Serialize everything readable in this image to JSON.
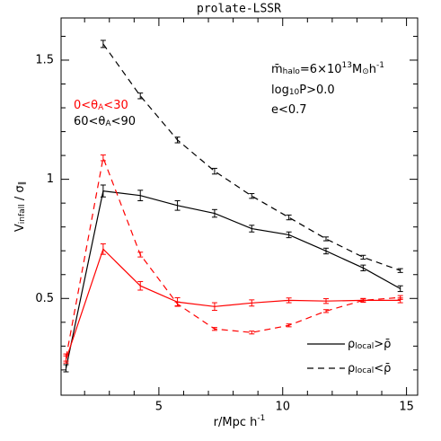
{
  "chart_data": {
    "type": "line",
    "title": "prolate-LSSR",
    "xlabel": [
      {
        "t": "r/Mpc h"
      },
      {
        "sup": "-1"
      }
    ],
    "ylabel": [
      {
        "t": "V"
      },
      {
        "sub": "infall"
      },
      {
        "t": " / σ"
      },
      {
        "sub": "∥"
      }
    ],
    "xlim": [
      1.05,
      15.45
    ],
    "ylim": [
      0.094,
      1.677
    ],
    "xticks": [
      5,
      10,
      15
    ],
    "yticks": [
      0.5,
      1,
      1.5
    ],
    "xminorticks": [
      2,
      3,
      4,
      6,
      7,
      8,
      9,
      11,
      12,
      13,
      14
    ],
    "yminorticks": [
      0.2,
      0.3,
      0.4,
      0.6,
      0.7,
      0.8,
      0.9,
      1.1,
      1.2,
      1.3,
      1.4,
      1.6
    ],
    "series": [
      {
        "color": "#000000",
        "dash": "dashed",
        "x": [
          2.75,
          4.25,
          5.75,
          7.25,
          8.75,
          10.25,
          11.75,
          13.25,
          14.75
        ],
        "values": [
          1.568,
          1.35,
          1.165,
          1.034,
          0.93,
          0.84,
          0.75,
          0.673,
          0.617
        ],
        "errors": [
          0.015,
          0.012,
          0.012,
          0.012,
          0.01,
          0.01,
          0.008,
          0.008,
          0.008
        ]
      },
      {
        "color": "#000000",
        "dash": "solid",
        "x": [
          1.25,
          2.75,
          4.25,
          5.75,
          7.25,
          8.75,
          10.25,
          11.75,
          13.25,
          14.75
        ],
        "values": [
          0.207,
          0.951,
          0.932,
          0.89,
          0.857,
          0.793,
          0.767,
          0.699,
          0.628,
          0.541
        ],
        "errors": [
          0.015,
          0.025,
          0.022,
          0.02,
          0.016,
          0.014,
          0.012,
          0.012,
          0.012,
          0.012
        ]
      },
      {
        "color": "#ff0000",
        "dash": "solid",
        "x": [
          1.25,
          2.75,
          4.25,
          5.75,
          7.25,
          8.75,
          10.25,
          11.75,
          13.25,
          14.75
        ],
        "values": [
          0.244,
          0.707,
          0.553,
          0.485,
          0.466,
          0.481,
          0.492,
          0.489,
          0.492,
          0.492
        ],
        "errors": [
          0.015,
          0.022,
          0.018,
          0.018,
          0.016,
          0.013,
          0.01,
          0.01,
          0.008,
          0.01
        ]
      },
      {
        "color": "#ff0000",
        "dash": "dashed",
        "x": [
          1.25,
          2.75,
          4.25,
          5.75,
          7.25,
          8.75,
          10.25,
          11.75,
          13.25,
          14.75
        ],
        "values": [
          0.252,
          1.09,
          0.684,
          0.477,
          0.372,
          0.357,
          0.387,
          0.447,
          0.492,
          0.504
        ],
        "errors": [
          0.015,
          0.012,
          0.01,
          0.008,
          0.006,
          0.006,
          0.006,
          0.006,
          0.006,
          0.008
        ]
      }
    ],
    "annotations": [
      {
        "color": "#000000",
        "parts": [
          {
            "t": "m̄"
          },
          {
            "sub": "halo"
          },
          {
            "t": "=6×10"
          },
          {
            "sup": "13"
          },
          {
            "t": "M"
          },
          {
            "sub": "⊙"
          },
          {
            "t": "h"
          },
          {
            "sup": "-1"
          }
        ]
      },
      {
        "color": "#000000",
        "parts": [
          {
            "t": "log"
          },
          {
            "sub": "10"
          },
          {
            "t": "P>0.0"
          }
        ]
      },
      {
        "color": "#000000",
        "parts": [
          {
            "t": "e<0.7"
          }
        ]
      },
      {
        "color": "#ff0000",
        "parts": [
          {
            "t": "0<θ"
          },
          {
            "sub": "A"
          },
          {
            "t": "<30"
          }
        ]
      },
      {
        "color": "#000000",
        "parts": [
          {
            "t": "60<θ"
          },
          {
            "sub": "A"
          },
          {
            "t": "<90"
          }
        ]
      }
    ],
    "legend": {
      "position": "lower right",
      "entries": [
        {
          "dash": "solid",
          "parts": [
            {
              "t": "ρ"
            },
            {
              "sub": "local"
            },
            {
              "t": ">ρ̄"
            }
          ]
        },
        {
          "dash": "dashed",
          "parts": [
            {
              "t": "ρ"
            },
            {
              "sub": "local"
            },
            {
              "t": "<ρ̄"
            }
          ]
        }
      ]
    }
  }
}
